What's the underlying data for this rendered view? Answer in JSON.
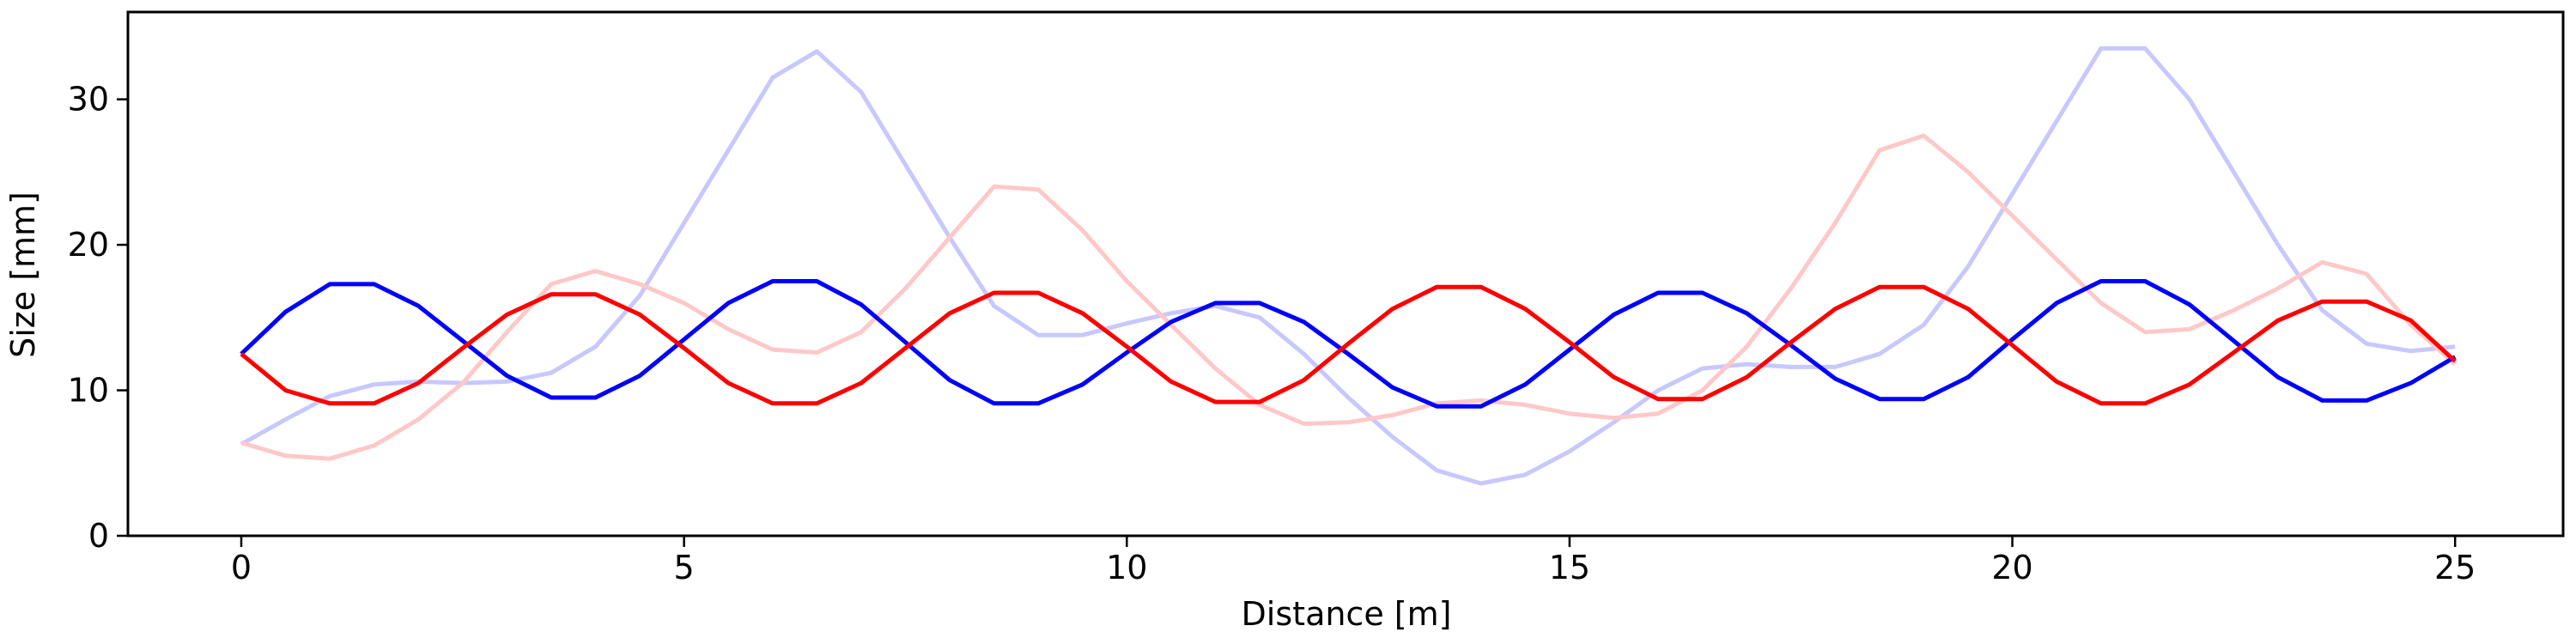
{
  "chart_data": {
    "type": "line",
    "x_label": "Distance [m]",
    "y_label": "Size [mm]",
    "x": [
      0,
      0.5,
      1,
      1.5,
      2,
      2.5,
      3,
      3.5,
      4,
      4.5,
      5,
      5.5,
      6,
      6.5,
      7,
      7.5,
      8,
      8.5,
      9,
      9.5,
      10,
      10.5,
      11,
      11.5,
      12,
      12.5,
      13,
      13.5,
      14,
      14.5,
      15,
      15.5,
      16,
      16.5,
      17,
      17.5,
      18,
      18.5,
      19,
      19.5,
      20,
      20.5,
      21,
      21.5,
      22,
      22.5,
      23,
      23.5,
      24,
      24.5,
      25
    ],
    "series": [
      {
        "color": "#c8c8ff",
        "values": [
          6.3,
          8.0,
          9.6,
          10.4,
          10.6,
          10.5,
          10.6,
          11.2,
          13.0,
          16.5,
          21.5,
          26.5,
          31.5,
          33.3,
          30.5,
          25.5,
          20.5,
          15.8,
          13.8,
          13.8,
          14.6,
          15.3,
          15.8,
          15.0,
          12.5,
          9.5,
          6.8,
          4.5,
          3.6,
          4.2,
          5.8,
          7.8,
          10.0,
          11.5,
          11.8,
          11.6,
          11.6,
          12.5,
          14.5,
          18.5,
          23.5,
          28.5,
          33.5,
          33.5,
          30.0,
          25.0,
          20.0,
          15.5,
          13.2,
          12.7,
          13.0
        ]
      },
      {
        "color": "#ffc8c8",
        "values": [
          6.4,
          5.5,
          5.3,
          6.2,
          8.0,
          10.5,
          14.0,
          17.3,
          18.2,
          17.3,
          16.0,
          14.2,
          12.8,
          12.6,
          14.0,
          17.0,
          20.5,
          24.0,
          23.8,
          21.0,
          17.5,
          14.5,
          11.5,
          9.0,
          7.7,
          7.8,
          8.3,
          9.1,
          9.3,
          9.0,
          8.4,
          8.1,
          8.4,
          10.0,
          13.0,
          17.0,
          21.5,
          26.5,
          27.5,
          25.0,
          22.0,
          19.0,
          16.0,
          14.0,
          14.2,
          15.5,
          17.0,
          18.8,
          18.0,
          14.5,
          11.8
        ]
      },
      {
        "color": "#0000ff",
        "values": [
          12.5,
          15.4,
          17.3,
          17.3,
          15.8,
          13.4,
          11.0,
          9.5,
          9.5,
          11.0,
          13.5,
          16.0,
          17.5,
          17.5,
          15.9,
          13.3,
          10.7,
          9.1,
          9.1,
          10.4,
          12.6,
          14.7,
          16.0,
          16.0,
          14.7,
          12.5,
          10.2,
          8.9,
          8.9,
          10.4,
          12.8,
          15.2,
          16.7,
          16.7,
          15.3,
          13.1,
          10.8,
          9.4,
          9.4,
          10.9,
          13.5,
          16.0,
          17.5,
          17.5,
          15.9,
          13.4,
          10.9,
          9.3,
          9.3,
          10.5,
          12.3
        ]
      },
      {
        "color": "#ff0000",
        "values": [
          12.5,
          10.0,
          9.1,
          9.1,
          10.5,
          12.9,
          15.2,
          16.6,
          16.6,
          15.2,
          12.9,
          10.5,
          9.1,
          9.1,
          10.5,
          12.9,
          15.3,
          16.7,
          16.7,
          15.3,
          13.0,
          10.6,
          9.2,
          9.2,
          10.7,
          13.2,
          15.6,
          17.1,
          17.1,
          15.6,
          13.3,
          10.9,
          9.4,
          9.4,
          10.9,
          13.3,
          15.6,
          17.1,
          17.1,
          15.6,
          13.1,
          10.6,
          9.1,
          9.1,
          10.4,
          12.6,
          14.8,
          16.1,
          16.1,
          14.8,
          12.0
        ]
      }
    ],
    "xlim": [
      -1.28,
      26.22
    ],
    "ylim": [
      0,
      36
    ],
    "xticks": [
      0,
      5,
      10,
      15,
      20,
      25
    ],
    "yticks": [
      0,
      10,
      20,
      30
    ],
    "grid": false
  }
}
